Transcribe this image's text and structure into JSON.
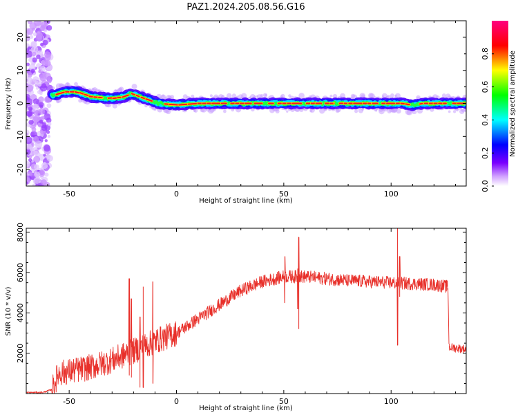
{
  "title": "PAZ1.2024.205.08.56.G16",
  "chart_data": [
    {
      "type": "heatmap",
      "xlabel": "Height of straight line (km)",
      "ylabel": "Frequency (Hz)",
      "xlim": [
        -70,
        135
      ],
      "ylim": [
        -25,
        25
      ],
      "xticks": [
        -50,
        0,
        50,
        100
      ],
      "yticks": [
        -20,
        -10,
        0,
        10,
        20
      ],
      "ridge": {
        "x": [
          -57,
          -52,
          -46,
          -40,
          -30,
          -24,
          -21,
          -15,
          -8,
          0,
          10,
          30,
          45,
          50,
          60,
          70,
          90,
          105,
          110,
          115,
          125,
          135
        ],
        "y": [
          2.5,
          3.5,
          3.5,
          2.0,
          1.5,
          2.0,
          3.0,
          1.5,
          0.0,
          -0.5,
          0.0,
          0.0,
          0.0,
          0.0,
          0.0,
          0.0,
          0.0,
          0.0,
          -0.5,
          0.0,
          0.0,
          0.0
        ]
      },
      "noise_band_x": [
        -70,
        -59
      ],
      "colorbar": {
        "label": "Normalized spectral amplitude",
        "range": [
          0,
          1
        ],
        "ticks": [
          "0.0",
          "0.2",
          "0.4",
          "0.6",
          "0.8"
        ],
        "colors": [
          "#ffffff",
          "#d0a0ff",
          "#7a00ff",
          "#0000ff",
          "#00ffff",
          "#00ff00",
          "#ffff00",
          "#ff0000",
          "#ff0080"
        ]
      }
    },
    {
      "type": "line",
      "xlabel": "Height of straight line (km)",
      "ylabel": "SNR (10 * v/v)",
      "xlim": [
        -70,
        135
      ],
      "ylim": [
        0,
        8200
      ],
      "xticks": [
        -50,
        0,
        50,
        100
      ],
      "yticks": [
        2000,
        4000,
        6000,
        8000
      ],
      "color": "#e8302a",
      "trend": {
        "x": [
          -70,
          -62,
          -58,
          -55,
          -50,
          -40,
          -30,
          -20,
          -10,
          0,
          10,
          20,
          30,
          40,
          50,
          60,
          70,
          80,
          90,
          100,
          110,
          120,
          126.5,
          127,
          135
        ],
        "y": [
          50,
          60,
          200,
          1000,
          1100,
          1300,
          1650,
          2100,
          2600,
          3000,
          3700,
          4400,
          5100,
          5550,
          5800,
          5800,
          5700,
          5600,
          5550,
          5500,
          5450,
          5400,
          5300,
          2300,
          2200
        ]
      },
      "spikes": [
        {
          "x": -22,
          "y": 5700,
          "min": 900
        },
        {
          "x": -21,
          "y": 4700,
          "min": 800
        },
        {
          "x": -17,
          "y": 3800,
          "min": 300
        },
        {
          "x": -15.5,
          "y": 5300,
          "min": 300
        },
        {
          "x": -11,
          "y": 5550,
          "min": 500
        },
        {
          "x": 50.5,
          "y": 6800,
          "min": 4500
        },
        {
          "x": 57,
          "y": 7750,
          "min": 3200
        },
        {
          "x": 56.5,
          "y": 6200,
          "min": 4200
        },
        {
          "x": 103,
          "y": 8200,
          "min": 2400
        },
        {
          "x": 104,
          "y": 6800,
          "min": 4800
        }
      ]
    }
  ]
}
